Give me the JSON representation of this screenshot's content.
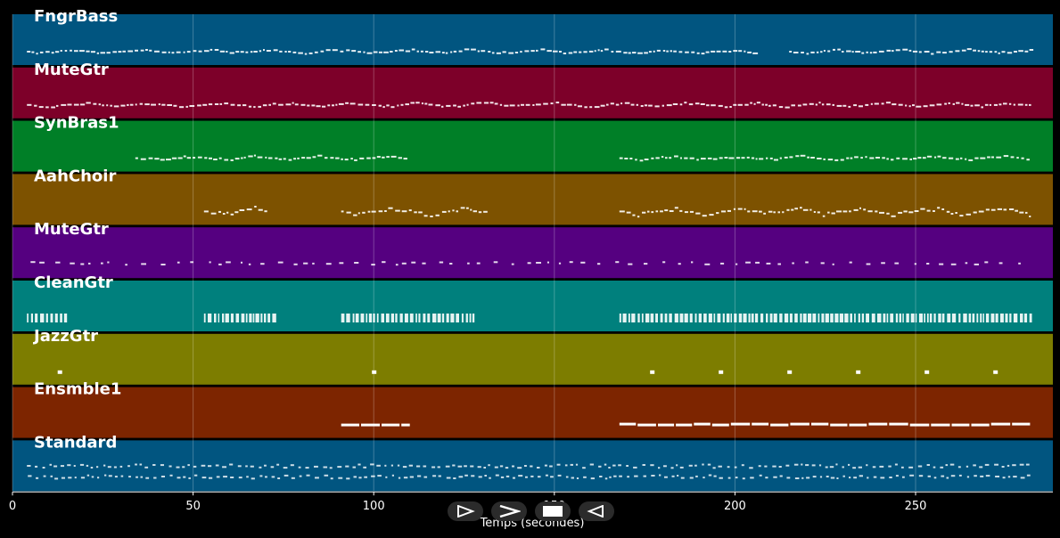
{
  "chart_data": {
    "type": "piano-roll",
    "xlabel": "Temps (secondes)",
    "xlim": [
      0,
      288
    ],
    "xticks": [
      0,
      50,
      100,
      150,
      200,
      250
    ],
    "grid": true,
    "tracks": [
      {
        "name": "FngrBass",
        "color": "#015580",
        "segments": [
          [
            4,
            206
          ],
          [
            215,
            282
          ]
        ],
        "style": "line"
      },
      {
        "name": "MuteGtr",
        "color": "#7d0029",
        "segments": [
          [
            4,
            282
          ]
        ],
        "style": "line"
      },
      {
        "name": "SynBras1",
        "color": "#007f27",
        "segments": [
          [
            34,
            109
          ],
          [
            168,
            282
          ]
        ],
        "style": "line"
      },
      {
        "name": "AahChoir",
        "color": "#7d5200",
        "segments": [
          [
            53,
            71
          ],
          [
            91,
            132
          ],
          [
            168,
            282
          ]
        ],
        "style": "melody"
      },
      {
        "name": "MuteGtr",
        "color": "#550080",
        "segments": [
          [
            5,
            282
          ]
        ],
        "style": "sparse"
      },
      {
        "name": "CleanGtr",
        "color": "#00807d",
        "segments": [
          [
            4,
            15
          ],
          [
            53,
            72
          ],
          [
            91,
            128
          ],
          [
            168,
            282
          ]
        ],
        "style": "dense"
      },
      {
        "name": "JazzGtr",
        "color": "#7d7d00",
        "notes": [
          13,
          100,
          177,
          196,
          215,
          234,
          253,
          272
        ],
        "style": "dots"
      },
      {
        "name": "Ensmble1",
        "color": "#7d2500",
        "segments": [
          [
            91,
            110
          ],
          [
            168,
            282
          ]
        ],
        "style": "long"
      },
      {
        "name": "Standard",
        "color": "#015580",
        "segments": [
          [
            4,
            282
          ]
        ],
        "style": "drums"
      }
    ]
  },
  "controls": {
    "play_icon": "play-icon",
    "forward_icon": "forward-icon",
    "stop_icon": "stop-icon",
    "rewind_icon": "rewind-icon"
  }
}
